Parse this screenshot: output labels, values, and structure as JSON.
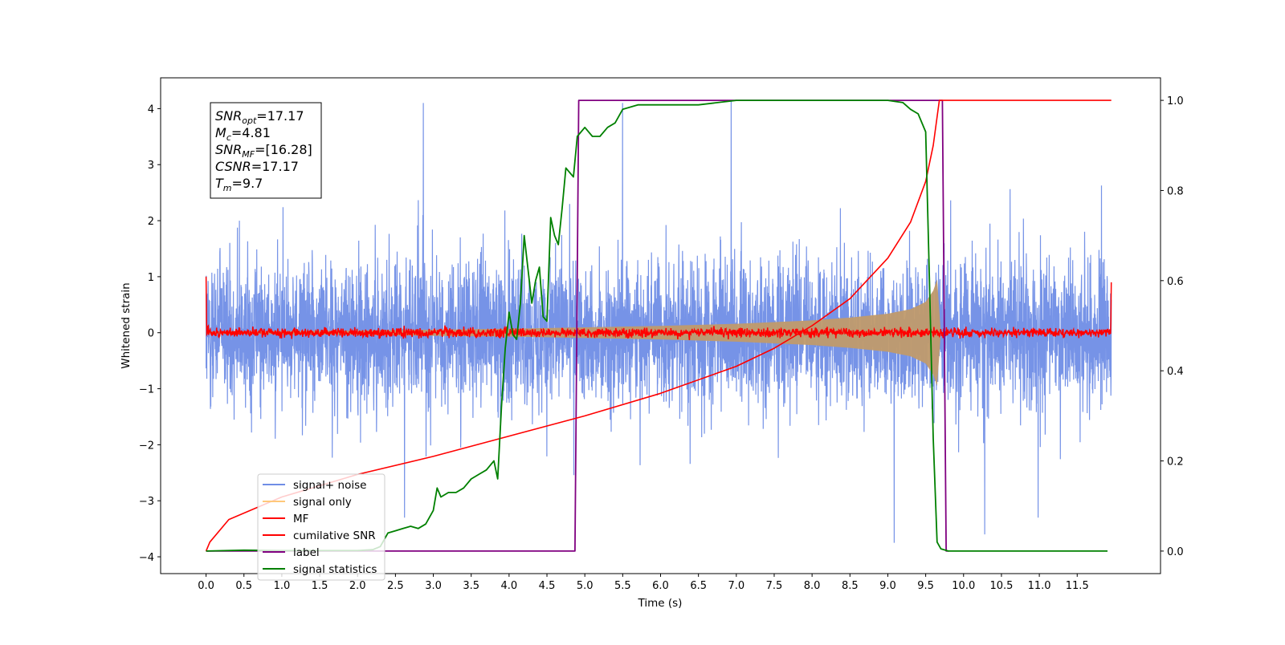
{
  "chart_data": {
    "type": "line",
    "title": "",
    "xlabel": "Time (s)",
    "ylabel": "Whitened strain",
    "y2label": "",
    "xlim": [
      -0.6,
      12.6
    ],
    "ylim": [
      -4.3,
      4.55
    ],
    "y2lim": [
      -0.05,
      1.05
    ],
    "x_ticks": [
      "0.0",
      "0.5",
      "1.0",
      "1.5",
      "2.0",
      "2.5",
      "3.0",
      "3.5",
      "4.0",
      "4.5",
      "5.0",
      "5.5",
      "6.0",
      "6.5",
      "7.0",
      "7.5",
      "8.0",
      "8.5",
      "9.0",
      "9.5",
      "10.0",
      "10.5",
      "11.0",
      "11.5"
    ],
    "y_ticks": [
      "4",
      "3",
      "2",
      "1",
      "0",
      "−1",
      "−2",
      "−3",
      "−4"
    ],
    "y2_ticks": [
      "1.0",
      "0.8",
      "0.6",
      "0.4",
      "0.2",
      "0.0"
    ],
    "annotation": {
      "lines": [
        {
          "base": "SNR",
          "sub": "opt",
          "value": "=17.17"
        },
        {
          "base": "M",
          "sub": "c",
          "value": "=4.81"
        },
        {
          "base": "SNR",
          "sub": "MF",
          "value": "=[16.28]"
        },
        {
          "base": "CSNR",
          "sub": "",
          "value": "=17.17"
        },
        {
          "base": "T",
          "sub": "m",
          "value": "=9.7"
        }
      ]
    },
    "legend": {
      "placement": "lower-left",
      "entries": [
        {
          "label": "signal+ noise",
          "color": "#6f8de6"
        },
        {
          "label": "signal only",
          "color": "#ffc87a"
        },
        {
          "label": "MF",
          "color": "#ff0000"
        },
        {
          "label": "cumilative SNR",
          "color": "#ff0000"
        },
        {
          "label": "label",
          "color": "#800080"
        },
        {
          "label": "signal statistics",
          "color": "#008000"
        }
      ]
    },
    "series": [
      {
        "name": "signal+ noise",
        "axis": "left",
        "color": "#6f8de6",
        "style": "noise",
        "x_range": [
          0.0,
          11.95
        ],
        "typical_amplitude": 2.5,
        "peak_values": [
          4.1,
          4.1,
          4.15,
          -3.75,
          -3.6
        ]
      },
      {
        "name": "signal only",
        "axis": "left",
        "color": "#c09a6b",
        "style": "chirp-envelope",
        "x": [
          0.0,
          2.0,
          4.0,
          6.0,
          7.0,
          8.0,
          8.5,
          9.0,
          9.3,
          9.5,
          9.6,
          9.65,
          9.7
        ],
        "amplitude": [
          0.02,
          0.04,
          0.07,
          0.12,
          0.16,
          0.22,
          0.27,
          0.34,
          0.42,
          0.55,
          0.75,
          0.95,
          0.0
        ]
      },
      {
        "name": "MF",
        "axis": "left",
        "color": "#ff0000",
        "style": "noise-around-zero",
        "x_range": [
          0.0,
          11.95
        ],
        "typical_amplitude": 0.07,
        "start_value": 1.0,
        "end_value": 0.9
      },
      {
        "name": "cumilative SNR",
        "axis": "right",
        "color": "#ff0000",
        "x": [
          0.0,
          0.05,
          0.3,
          1.0,
          2.0,
          3.0,
          4.0,
          5.0,
          6.0,
          7.0,
          7.5,
          8.0,
          8.5,
          9.0,
          9.3,
          9.5,
          9.6,
          9.68,
          9.7,
          10.0,
          11.0,
          11.95
        ],
        "y": [
          0.0,
          0.02,
          0.07,
          0.12,
          0.17,
          0.21,
          0.255,
          0.3,
          0.35,
          0.41,
          0.45,
          0.5,
          0.56,
          0.65,
          0.73,
          0.82,
          0.9,
          1.0,
          1.0,
          1.0,
          1.0,
          1.0
        ]
      },
      {
        "name": "label",
        "axis": "right",
        "color": "#800080",
        "x": [
          0.0,
          4.87,
          4.92,
          9.72,
          9.77,
          9.8
        ],
        "y": [
          0.0,
          0.0,
          1.0,
          1.0,
          0.0,
          0.0
        ]
      },
      {
        "name": "signal statistics",
        "axis": "right",
        "color": "#008000",
        "x": [
          0.0,
          0.5,
          1.0,
          1.5,
          2.0,
          2.2,
          2.3,
          2.4,
          2.5,
          2.6,
          2.7,
          2.8,
          2.9,
          3.0,
          3.05,
          3.1,
          3.2,
          3.3,
          3.4,
          3.5,
          3.6,
          3.7,
          3.8,
          3.85,
          3.9,
          3.95,
          4.0,
          4.05,
          4.1,
          4.15,
          4.2,
          4.3,
          4.35,
          4.4,
          4.45,
          4.5,
          4.55,
          4.6,
          4.65,
          4.7,
          4.75,
          4.8,
          4.85,
          4.9,
          5.0,
          5.1,
          5.2,
          5.3,
          5.4,
          5.5,
          5.7,
          6.0,
          6.5,
          7.0,
          7.5,
          8.0,
          8.5,
          9.0,
          9.2,
          9.3,
          9.4,
          9.5,
          9.55,
          9.6,
          9.65,
          9.7,
          9.8,
          10.0,
          11.0,
          11.9
        ],
        "y": [
          0.0,
          0.002,
          0.001,
          0.001,
          0.001,
          0.003,
          0.01,
          0.04,
          0.045,
          0.05,
          0.055,
          0.05,
          0.06,
          0.09,
          0.14,
          0.12,
          0.13,
          0.13,
          0.14,
          0.16,
          0.17,
          0.18,
          0.2,
          0.16,
          0.32,
          0.45,
          0.53,
          0.48,
          0.47,
          0.55,
          0.7,
          0.55,
          0.6,
          0.63,
          0.52,
          0.51,
          0.74,
          0.7,
          0.68,
          0.76,
          0.85,
          0.84,
          0.83,
          0.92,
          0.94,
          0.92,
          0.92,
          0.94,
          0.95,
          0.98,
          0.99,
          0.99,
          0.99,
          1.0,
          1.0,
          1.0,
          1.0,
          1.0,
          0.995,
          0.98,
          0.97,
          0.93,
          0.6,
          0.25,
          0.02,
          0.005,
          0.0,
          0.0,
          0.0,
          0.0
        ]
      }
    ]
  }
}
